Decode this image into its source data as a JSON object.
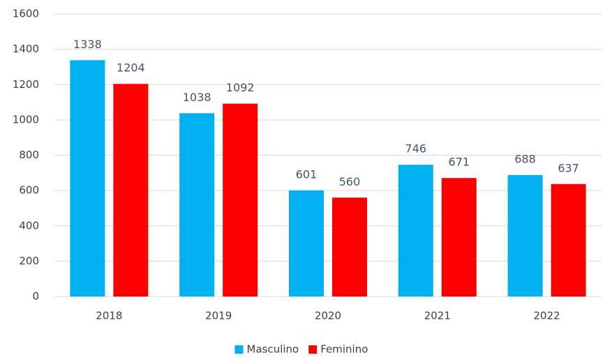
{
  "chart_data": {
    "type": "bar",
    "categories": [
      "2018",
      "2019",
      "2020",
      "2021",
      "2022"
    ],
    "series": [
      {
        "name": "Masculino",
        "color": "#00b0f0",
        "values": [
          1338,
          1038,
          601,
          746,
          688
        ]
      },
      {
        "name": "Feminino",
        "color": "#ff0000",
        "values": [
          1204,
          1092,
          560,
          671,
          637
        ]
      }
    ],
    "ylim": [
      0,
      1600
    ],
    "yticks": [
      0,
      200,
      400,
      600,
      800,
      1000,
      1200,
      1400,
      1600
    ],
    "grid": true,
    "legend": "bottom"
  }
}
